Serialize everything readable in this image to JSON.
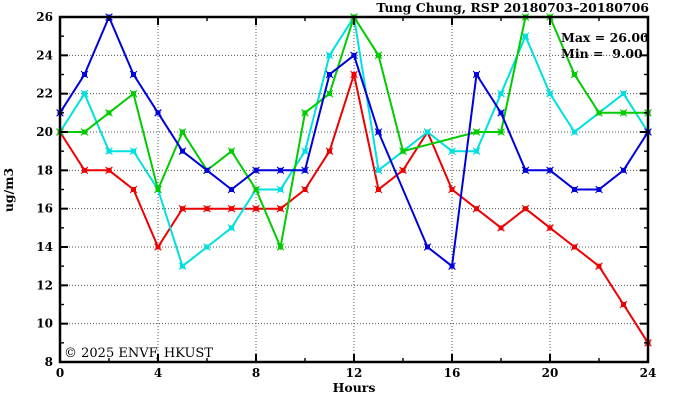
{
  "chart_data": {
    "type": "line",
    "title": "Tung Chung, RSP 20180703–20180706",
    "xlabel": "Hours",
    "ylabel": "ug/m3",
    "xlim": [
      0,
      24
    ],
    "ylim": [
      8,
      26
    ],
    "x": [
      0,
      1,
      2,
      3,
      4,
      5,
      6,
      7,
      8,
      9,
      10,
      11,
      12,
      13,
      14,
      15,
      16,
      17,
      18,
      19,
      20,
      21,
      22,
      23,
      24
    ],
    "x_major_ticks": [
      0,
      4,
      8,
      12,
      16,
      20,
      24
    ],
    "x_minor_ticks": [
      2,
      6,
      10,
      14,
      18,
      22
    ],
    "y_major_ticks": [
      8,
      10,
      12,
      14,
      16,
      18,
      20,
      22,
      24,
      26
    ],
    "y_minor_ticks": [
      9,
      11,
      13,
      15,
      17,
      19,
      21,
      23,
      25
    ],
    "x_gridlines": [
      4,
      8,
      12,
      16,
      20
    ],
    "y_gridlines": [
      10,
      12,
      14,
      16,
      18,
      20,
      22,
      24
    ],
    "grid_on": true,
    "legend": "none",
    "series": [
      {
        "name": "red-series",
        "color": "#ee0000",
        "values": [
          20,
          18,
          18,
          17,
          14,
          16,
          16,
          16,
          16,
          16,
          17,
          19,
          23,
          17,
          18,
          20,
          17,
          16,
          15,
          16,
          15,
          14,
          13,
          11,
          9
        ]
      },
      {
        "name": "cyan-series",
        "color": "#00e0e0",
        "values": [
          20,
          22,
          19,
          19,
          17,
          13,
          14,
          15,
          17,
          17,
          19,
          24,
          26,
          18,
          19,
          20,
          19,
          19,
          22,
          25,
          22,
          20,
          21,
          22,
          20
        ]
      },
      {
        "name": "green-series",
        "color": "#00cc00",
        "values": [
          20,
          20,
          21,
          22,
          17,
          20,
          18,
          19,
          17,
          14,
          21,
          22,
          26,
          24,
          19,
          null,
          null,
          20,
          20,
          26,
          26,
          23,
          21,
          21,
          21
        ]
      },
      {
        "name": "blue-series",
        "color": "#0000dd",
        "values": [
          21,
          23,
          26,
          23,
          21,
          19,
          18,
          17,
          18,
          18,
          18,
          23,
          24,
          20,
          null,
          14,
          13,
          23,
          21,
          18,
          18,
          17,
          17,
          18,
          20
        ]
      }
    ]
  },
  "annotations": {
    "max": "Max = 26.00",
    "min": "Min =  9.00"
  },
  "watermark": {
    "text": "© 2025 ENVF, HKUST",
    "color": "#d3d3d3"
  },
  "colors": {
    "axis": "#000000",
    "grid": "#555555",
    "background": "#ffffff"
  }
}
